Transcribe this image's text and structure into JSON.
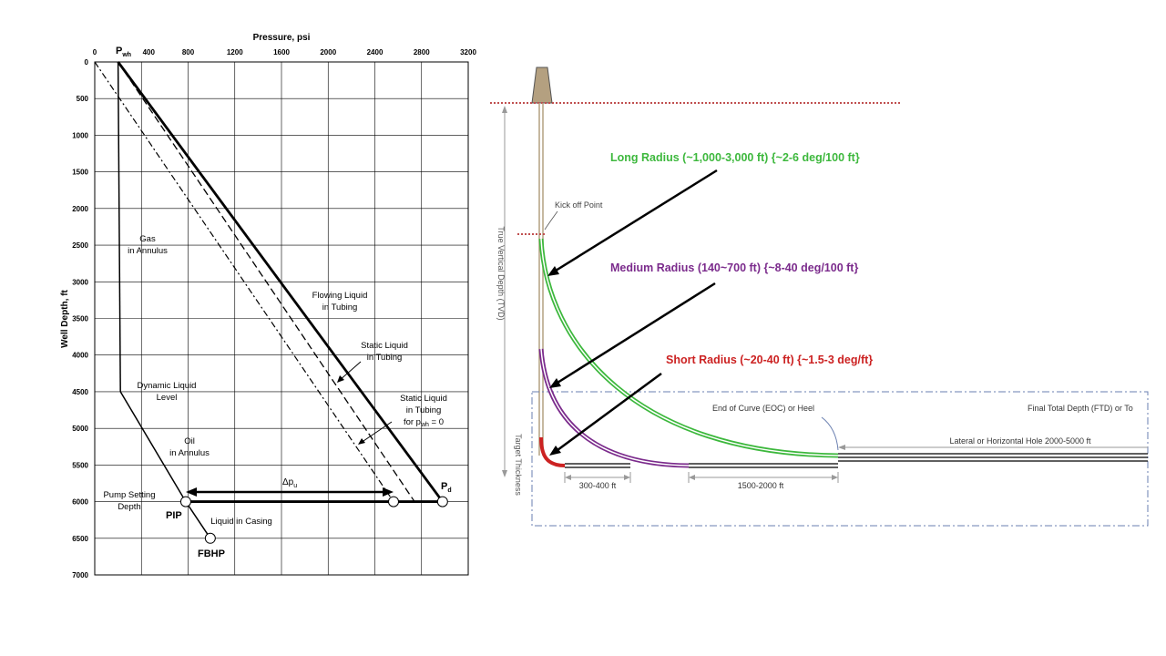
{
  "left_chart": {
    "x_title": "Pressure, psi",
    "y_title": "Well Depth, ft",
    "x_ticks": [
      "0",
      "400",
      "800",
      "1200",
      "1600",
      "2000",
      "2400",
      "2800",
      "3200"
    ],
    "y_ticks": [
      "0",
      "500",
      "1000",
      "1500",
      "2000",
      "2500",
      "3000",
      "3500",
      "4000",
      "4500",
      "5000",
      "5500",
      "6000",
      "6500",
      "7000"
    ],
    "pwh_label": "P",
    "pwh_sub": "wh",
    "pd_label": "P",
    "pd_sub": "d",
    "dp_label": "Δp",
    "dp_sub": "u",
    "gas_line1": "Gas",
    "gas_line2": "in Annulus",
    "flow_line1": "Flowing Liquid",
    "flow_line2": "in Tubing",
    "static_line1": "Static Liquid",
    "static_line2": "in Tubing",
    "static0_line1": "Static Liquid",
    "static0_line2": "in Tubing",
    "static0_line3": "for p",
    "static0_sub": "wh",
    "static0_tail": " = 0",
    "dyn_line1": "Dynamic Liquid",
    "dyn_line2": "Level",
    "oil_line1": "Oil",
    "oil_line2": "in Annulus",
    "pump_line1": "Pump Setting",
    "pump_line2": "Depth",
    "pip": "PIP",
    "casing": "Liquid in Casing",
    "fbhp": "FBHP"
  },
  "chart_data": {
    "type": "line",
    "xlabel": "Pressure, psi",
    "ylabel": "Well Depth, ft",
    "xlim": [
      0,
      3200
    ],
    "ylim": [
      7000,
      0
    ],
    "series": [
      {
        "name": "Gas in Annulus",
        "x": [
          200,
          220
        ],
        "y": [
          0,
          4500
        ]
      },
      {
        "name": "Flowing Liquid in Tubing",
        "x": [
          200,
          2980
        ],
        "y": [
          0,
          6000
        ]
      },
      {
        "name": "Static Liquid in Tubing",
        "x": [
          200,
          2740
        ],
        "y": [
          0,
          6000
        ]
      },
      {
        "name": "Static Liquid in Tubing for pwh = 0",
        "x": [
          0,
          2560
        ],
        "y": [
          0,
          6000
        ]
      },
      {
        "name": "Oil in Annulus",
        "x": [
          220,
          780
        ],
        "y": [
          4500,
          6000
        ]
      },
      {
        "name": "Liquid in Casing",
        "x": [
          780,
          990
        ],
        "y": [
          6000,
          6500
        ]
      }
    ],
    "points": [
      {
        "name": "PIP",
        "x": 780,
        "y": 6000
      },
      {
        "name": "Pd",
        "x": 2980,
        "y": 6000
      },
      {
        "name": "FBHP",
        "x": 990,
        "y": 6500
      }
    ]
  },
  "right_diagram": {
    "long_radius": "Long Radius (~1,000-3,000 ft)  {~2-6 deg/100 ft}",
    "medium_radius": "Medium Radius (140~700 ft)  {~8-40 deg/100 ft}",
    "short_radius": "Short Radius (~20-40 ft) {~1.5-3 deg/ft}",
    "kickoff": "Kick off Point",
    "tvd": "True Vertical Depth (TVD)",
    "target": "Target Thickness",
    "eoc": "End of Curve (EOC) or Heel",
    "ftd": "Final Total Depth (FTD) or To",
    "lateral": "Lateral or Horizontal Hole 2000-5000 ft",
    "dim1": "300-400 ft",
    "dim2": "1500-2000 ft",
    "colors": {
      "long": "#3db83d",
      "medium": "#7b2b8c",
      "short": "#cc2222",
      "ground": "#c05050",
      "dashdot": "#6a7fb0"
    }
  }
}
